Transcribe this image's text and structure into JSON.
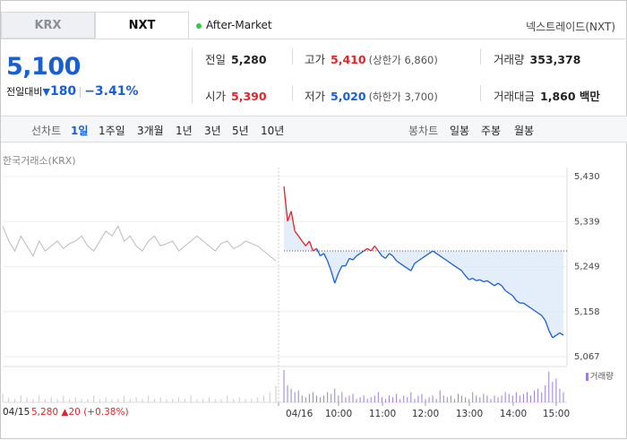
{
  "market_tabs": [
    {
      "label": "KRX",
      "active": false
    },
    {
      "label": "NXT",
      "active": true
    }
  ],
  "session": "After-Market",
  "exchange": "넥스트레이드(NXT)",
  "quote": {
    "price": "5,100",
    "change_label": "전일대비",
    "change_arrow": "▼",
    "change_amount": "180",
    "change_percent": "−3.41%"
  },
  "stats": {
    "prev_close": {
      "label": "전일",
      "value": "5,280"
    },
    "high": {
      "label": "고가",
      "value": "5,410",
      "sub": "(상한가 6,860)"
    },
    "volume": {
      "label": "거래량",
      "value": "353,378"
    },
    "open": {
      "label": "시가",
      "value": "5,390"
    },
    "low": {
      "label": "저가",
      "value": "5,020",
      "sub": "(하한가 3,700)"
    },
    "trade_value": {
      "label": "거래대금",
      "value": "1,860 백만"
    }
  },
  "toolbar": {
    "line_label": "선차트",
    "periods": [
      "1일",
      "1주일",
      "3개월",
      "1년",
      "3년",
      "5년",
      "10년"
    ],
    "active_period": "1일",
    "candle_label": "봉차트",
    "candle_periods": [
      "일봉",
      "주봉",
      "월봉"
    ]
  },
  "source_label": "한국거래소(KRX)",
  "colors": {
    "up": "#e0252a",
    "down": "#1a5fd0",
    "prev_day": "#bbbbbb",
    "volume": "#9b7fd1",
    "fill": "#dbe8fa"
  },
  "chart_data": {
    "type": "line",
    "y_ticks": [
      "5,430",
      "5,339",
      "5,249",
      "5,158",
      "5,067"
    ],
    "ylim": [
      5067,
      5430
    ],
    "x_ticks": [
      "04/16",
      "10:00",
      "11:00",
      "12:00",
      "13:00",
      "14:00",
      "15:00"
    ],
    "reference_price": 5280,
    "prev_day_series": [
      5330,
      5300,
      5280,
      5310,
      5290,
      5270,
      5300,
      5280,
      5290,
      5300,
      5285,
      5295,
      5300,
      5310,
      5290,
      5280,
      5300,
      5320,
      5310,
      5330,
      5300,
      5310,
      5290,
      5280,
      5300,
      5310,
      5290,
      5295,
      5300,
      5280,
      5290,
      5300,
      5310,
      5300,
      5290,
      5280,
      5295,
      5300,
      5285,
      5290,
      5300,
      5295,
      5290,
      5280,
      5270,
      5260
    ],
    "today_series": [
      5410,
      5340,
      5360,
      5320,
      5310,
      5300,
      5290,
      5300,
      5280,
      5285,
      5270,
      5275,
      5260,
      5240,
      5215,
      5235,
      5250,
      5250,
      5265,
      5262,
      5270,
      5275,
      5280,
      5285,
      5280,
      5290,
      5280,
      5270,
      5265,
      5275,
      5270,
      5260,
      5255,
      5250,
      5245,
      5240,
      5255,
      5260,
      5265,
      5270,
      5275,
      5280,
      5275,
      5270,
      5265,
      5260,
      5255,
      5250,
      5245,
      5240,
      5230,
      5222,
      5225,
      5220,
      5222,
      5218,
      5220,
      5215,
      5210,
      5215,
      5210,
      5200,
      5195,
      5190,
      5180,
      5175,
      5175,
      5170,
      5165,
      5160,
      5155,
      5150,
      5140,
      5120,
      5105,
      5110,
      5115,
      5110
    ],
    "volume_today": [
      0.95,
      0.5,
      0.4,
      0.3,
      0.35,
      0.2,
      0.15,
      0.25,
      0.3,
      0.2,
      0.15,
      0.2,
      0.3,
      0.25,
      0.4,
      0.2,
      0.3,
      0.15,
      0.2,
      0.25,
      0.1,
      0.15,
      0.2,
      0.1,
      0.15,
      0.2,
      0.3,
      0.15,
      0.1,
      0.2,
      0.15,
      0.25,
      0.1,
      0.2,
      0.15,
      0.3,
      0.1,
      0.2,
      0.25,
      0.1,
      0.15,
      0.2,
      0.1,
      0.35,
      0.2,
      0.15,
      0.2,
      0.1,
      0.25,
      0.2,
      0.15,
      0.1,
      0.3,
      0.2,
      0.15,
      0.25,
      0.2,
      0.1,
      0.2,
      0.15,
      0.2,
      0.3,
      0.25,
      0.2,
      0.3,
      0.2,
      0.25,
      0.3,
      0.2,
      0.35,
      0.4,
      0.3,
      0.5,
      0.9,
      0.6,
      0.7,
      0.4,
      0.3
    ],
    "volume_prev": [
      0.25,
      0.15,
      0.1,
      0.2,
      0.15,
      0.1,
      0.2,
      0.1,
      0.15,
      0.1,
      0.2,
      0.1,
      0.15,
      0.1,
      0.1,
      0.2,
      0.1,
      0.15,
      0.1,
      0.1,
      0.2,
      0.1,
      0.15,
      0.1,
      0.2,
      0.1,
      0.15,
      0.1,
      0.1,
      0.15,
      0.1,
      0.2,
      0.1,
      0.1,
      0.15,
      0.1,
      0.1,
      0.2,
      0.1,
      0.15,
      0.1,
      0.1,
      0.15,
      0.2,
      0.3,
      0.5
    ]
  },
  "footer": {
    "date_prev": "04/15",
    "prev_price": "5,280",
    "prev_change": "▲20",
    "prev_pct": "(+0.38%)",
    "volume_label": "거래량"
  }
}
